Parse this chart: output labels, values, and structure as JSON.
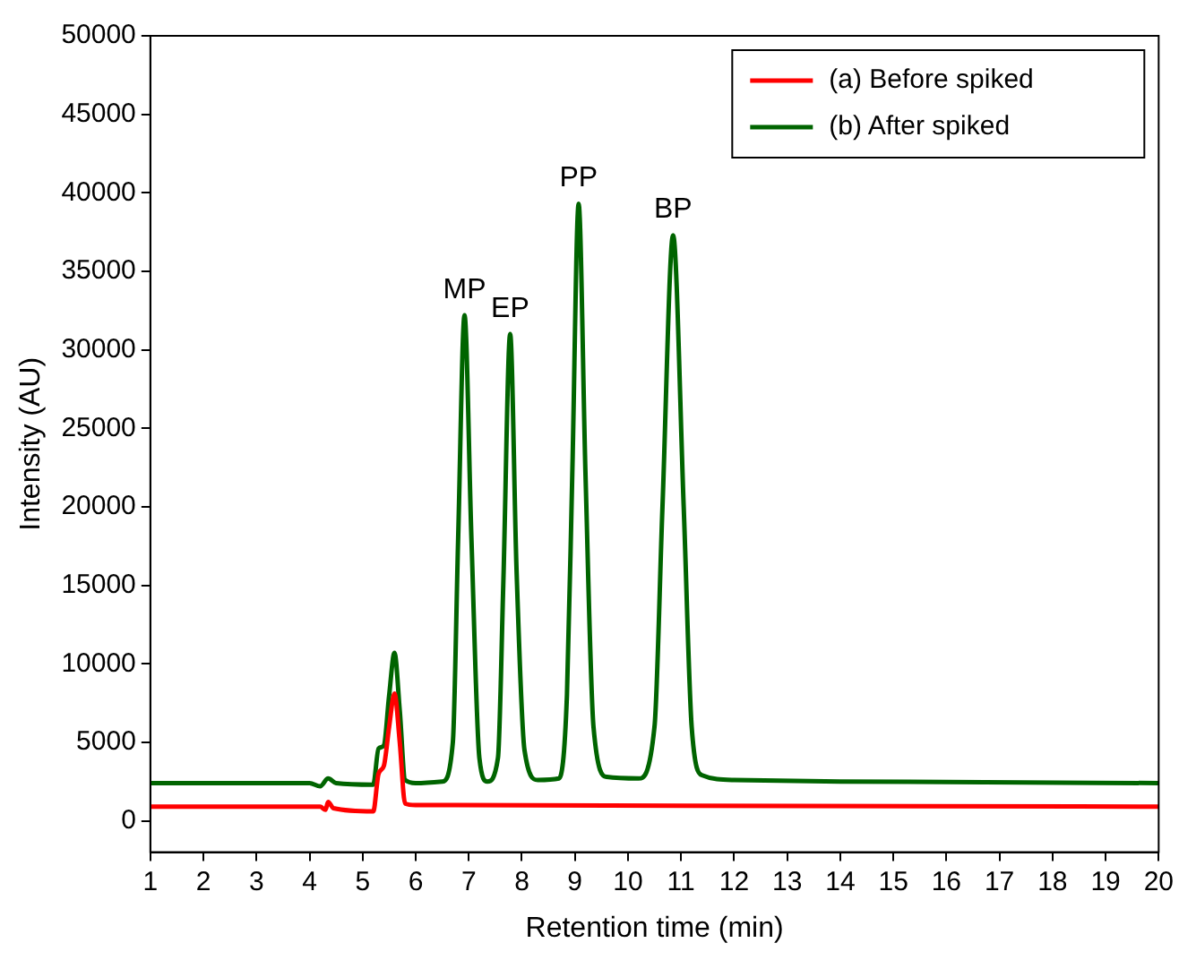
{
  "chart_data": {
    "type": "line",
    "xlabel": "Retention time (min)",
    "ylabel": "Intensity (AU)",
    "xlim": [
      1,
      20
    ],
    "xticks": [
      1,
      2,
      3,
      4,
      5,
      6,
      7,
      8,
      9,
      10,
      11,
      12,
      13,
      14,
      15,
      16,
      17,
      18,
      19,
      20
    ],
    "ylim": [
      -2000,
      50000
    ],
    "yticks": [
      0,
      5000,
      10000,
      15000,
      20000,
      25000,
      30000,
      35000,
      40000,
      45000,
      50000
    ],
    "grid": false,
    "legend": "top right",
    "marker": "none",
    "line_style": "solid",
    "series": [
      {
        "name": "(a) Before spiked",
        "color": "#ff0000",
        "x": [
          1,
          4.2,
          4.3,
          4.35,
          4.45,
          5.2,
          5.3,
          5.4,
          5.5,
          5.6,
          5.7,
          5.8,
          6,
          20
        ],
        "values": [
          900,
          900,
          700,
          1200,
          800,
          600,
          3000,
          3500,
          6000,
          8100,
          5000,
          1100,
          1000,
          900
        ]
      },
      {
        "name": "(b) After spiked",
        "color": "#006400",
        "x": [
          1,
          4,
          4.2,
          4.35,
          4.5,
          5.2,
          5.3,
          5.4,
          5.5,
          5.6,
          5.7,
          5.8,
          6,
          6.5,
          6.7,
          6.8,
          6.92,
          7.05,
          7.2,
          7.35,
          7.55,
          7.65,
          7.78,
          7.9,
          8.05,
          8.3,
          8.7,
          8.85,
          8.95,
          9.07,
          9.2,
          9.35,
          9.6,
          10.2,
          10.5,
          10.65,
          10.85,
          11.05,
          11.2,
          11.4,
          12,
          14,
          20
        ],
        "values": [
          2400,
          2400,
          2200,
          2700,
          2400,
          2300,
          4600,
          4800,
          8000,
          10700,
          7000,
          2600,
          2400,
          2500,
          5000,
          18000,
          32200,
          18000,
          4000,
          2500,
          4000,
          15000,
          31000,
          16000,
          4500,
          2600,
          2700,
          8000,
          22000,
          39300,
          22000,
          6000,
          2800,
          2700,
          6000,
          20000,
          37300,
          20000,
          6000,
          2900,
          2600,
          2500,
          2400
        ]
      }
    ],
    "annotations": [
      {
        "text": "MP",
        "x": 6.92,
        "y": 32200
      },
      {
        "text": "EP",
        "x": 7.78,
        "y": 31000
      },
      {
        "text": "PP",
        "x": 9.07,
        "y": 39300
      },
      {
        "text": "BP",
        "x": 10.85,
        "y": 37300
      }
    ]
  }
}
